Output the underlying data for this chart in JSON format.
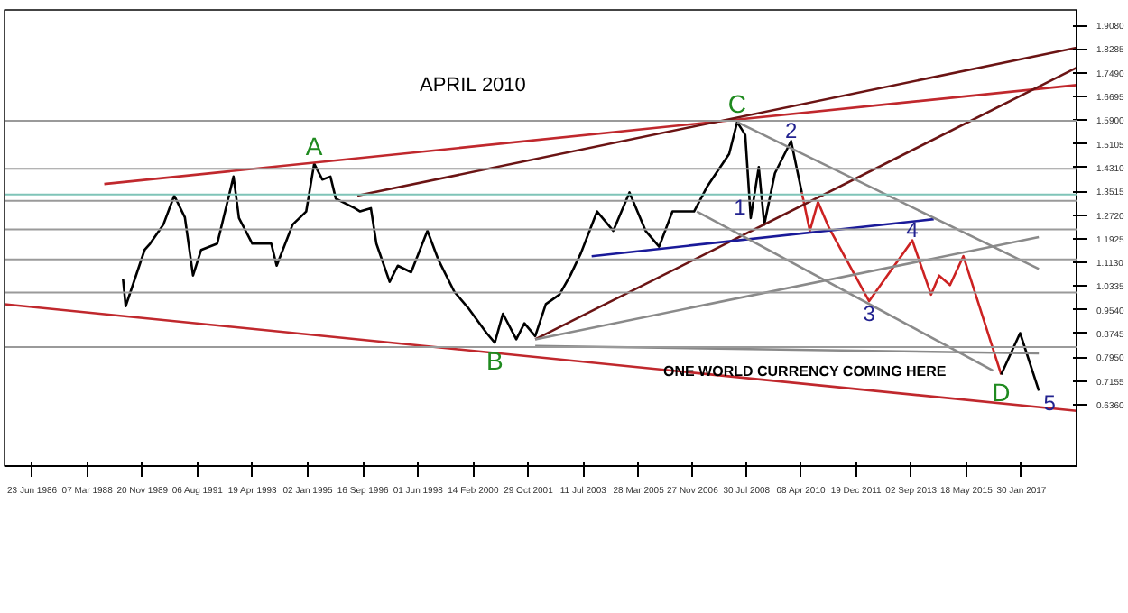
{
  "chart_data": {
    "type": "line",
    "title": "APRIL 2010",
    "xlim": [
      "1985-08",
      "2018-10"
    ],
    "ylim": [
      0.43,
      1.96
    ],
    "xticks": [
      {
        "value": "1986-06-23",
        "label": "23 Jun 1986"
      },
      {
        "value": "1988-03-07",
        "label": "07 Mar 1988"
      },
      {
        "value": "1989-11-20",
        "label": "20 Nov 1989"
      },
      {
        "value": "1991-08-06",
        "label": "06 Aug 1991"
      },
      {
        "value": "1993-04-19",
        "label": "19 Apr 1993"
      },
      {
        "value": "1995-01-02",
        "label": "02 Jan 1995"
      },
      {
        "value": "1996-09-16",
        "label": "16 Sep 1996"
      },
      {
        "value": "1998-06-01",
        "label": "01 Jun 1998"
      },
      {
        "value": "2000-02-14",
        "label": "14 Feb 2000"
      },
      {
        "value": "2001-10-29",
        "label": "29 Oct 2001"
      },
      {
        "value": "2003-07-11",
        "label": "11 Jul 2003"
      },
      {
        "value": "2005-03-28",
        "label": "28 Mar 2005"
      },
      {
        "value": "2006-11-27",
        "label": "27 Nov 2006"
      },
      {
        "value": "2008-07-30",
        "label": "30 Jul 2008"
      },
      {
        "value": "2010-04-08",
        "label": "08 Apr 2010"
      },
      {
        "value": "2011-12-19",
        "label": "19 Dec 2011"
      },
      {
        "value": "2013-09-02",
        "label": "02 Sep 2013"
      },
      {
        "value": "2015-05-18",
        "label": "18 May 2015"
      },
      {
        "value": "2017-01-30",
        "label": "30 Jan 2017"
      }
    ],
    "yticks": [
      {
        "value": 0.636,
        "label": "0.6360"
      },
      {
        "value": 0.7155,
        "label": "0.7155"
      },
      {
        "value": 0.795,
        "label": "0.7950"
      },
      {
        "value": 0.8745,
        "label": "0.8745"
      },
      {
        "value": 0.954,
        "label": "0.9540"
      },
      {
        "value": 1.0335,
        "label": "1.0335"
      },
      {
        "value": 1.113,
        "label": "1.1130"
      },
      {
        "value": 1.1925,
        "label": "1.1925"
      },
      {
        "value": 1.272,
        "label": "1.2720"
      },
      {
        "value": 1.3515,
        "label": "1.3515"
      },
      {
        "value": 1.431,
        "label": "1.4310"
      },
      {
        "value": 1.5105,
        "label": "1.5105"
      },
      {
        "value": 1.59,
        "label": "1.5900"
      },
      {
        "value": 1.6695,
        "label": "1.6695"
      },
      {
        "value": 1.749,
        "label": "1.7490"
      },
      {
        "value": 1.8285,
        "label": "1.8285"
      },
      {
        "value": 1.908,
        "label": "1.9080"
      }
    ],
    "grid": false,
    "series": [
      {
        "color": "#000000",
        "x": [
          "1989-04",
          "1989-05",
          "1989-12",
          "1990-02",
          "1990-07",
          "1990-11",
          "1991-03",
          "1991-06",
          "1991-09",
          "1992-03",
          "1992-09",
          "1992-11",
          "1993-04",
          "1993-11",
          "1994-01",
          "1994-07",
          "1994-12",
          "1995-03",
          "1995-06",
          "1995-09",
          "1995-11",
          "1996-06",
          "1996-08",
          "1996-12",
          "1997-02",
          "1997-07",
          "1997-10",
          "1998-03",
          "1998-09",
          "1999-01",
          "1999-07",
          "1999-12",
          "2000-07",
          "2000-10",
          "2001-01",
          "2001-06",
          "2001-09",
          "2002-01",
          "2002-05",
          "2002-10",
          "2003-02",
          "2003-06",
          "2003-12",
          "2004-06",
          "2004-12",
          "2005-06",
          "2005-11",
          "2006-04",
          "2006-12",
          "2007-05",
          "2008-01",
          "2008-04",
          "2008-07",
          "2008-09",
          "2008-12",
          "2009-02",
          "2009-06",
          "2009-12",
          "2010-04"
        ],
        "values": [
          1.058,
          0.966,
          1.155,
          1.176,
          1.24,
          1.337,
          1.264,
          1.069,
          1.155,
          1.176,
          1.401,
          1.262,
          1.176,
          1.176,
          1.102,
          1.24,
          1.284,
          1.444,
          1.391,
          1.401,
          1.327,
          1.295,
          1.284,
          1.295,
          1.176,
          1.048,
          1.102,
          1.08,
          1.219,
          1.123,
          1.015,
          0.962,
          0.876,
          0.844,
          0.941,
          0.855,
          0.909,
          0.866,
          0.973,
          1.005,
          1.069,
          1.144,
          1.284,
          1.219,
          1.348,
          1.219,
          1.166,
          1.284,
          1.284,
          1.369,
          1.477,
          1.584,
          1.541,
          1.262,
          1.433,
          1.24,
          1.412,
          1.52,
          1.348
        ]
      },
      {
        "color": "#cc2222",
        "x": [
          "2010-04",
          "2010-07",
          "2010-10",
          "2011-02",
          "2012-05",
          "2013-09",
          "2014-04",
          "2014-07",
          "2014-11",
          "2015-04",
          "2016-06"
        ],
        "values": [
          1.348,
          1.219,
          1.316,
          1.23,
          0.983,
          1.187,
          1.005,
          1.069,
          1.037,
          1.134,
          0.737
        ]
      },
      {
        "color": "#000000",
        "x": [
          "2016-06",
          "2017-01",
          "2017-08"
        ],
        "values": [
          0.737,
          0.876,
          0.683
        ]
      },
      {
        "color": "#c0282d",
        "x": [
          "1988-09",
          "2018-10"
        ],
        "values": [
          1.376,
          1.708
        ]
      },
      {
        "color": "#c0282d",
        "x": [
          "1985-08",
          "2018-10"
        ],
        "values": [
          0.973,
          0.615
        ]
      },
      {
        "color": "#6b1414",
        "x": [
          "1996-07",
          "2018-10"
        ],
        "values": [
          1.337,
          1.833
        ]
      },
      {
        "color": "#6b1414",
        "x": [
          "2002-01",
          "2018-10"
        ],
        "values": [
          0.855,
          1.766
        ]
      },
      {
        "color": "#1a1a99",
        "x": [
          "2003-10",
          "2014-05"
        ],
        "values": [
          1.134,
          1.258
        ]
      },
      {
        "color": "#8a8a8a",
        "x": [
          "2008-04",
          "2017-08"
        ],
        "values": [
          1.584,
          1.091
        ]
      },
      {
        "color": "#8a8a8a",
        "x": [
          "2007-01",
          "2016-03"
        ],
        "values": [
          1.284,
          0.75
        ]
      },
      {
        "color": "#8a8a8a",
        "x": [
          "2002-01",
          "2017-08"
        ],
        "values": [
          0.855,
          1.198
        ]
      },
      {
        "color": "#8a8a8a",
        "x": [
          "2002-01",
          "2017-08"
        ],
        "values": [
          0.833,
          0.808
        ]
      }
    ],
    "ref_lines": [
      {
        "axis": "y",
        "value": 1.588,
        "color": "#9a9a9a"
      },
      {
        "axis": "y",
        "value": 1.427,
        "color": "#9a9a9a"
      },
      {
        "axis": "y",
        "value": 1.32,
        "color": "#9a9a9a"
      },
      {
        "axis": "y",
        "value": 1.224,
        "color": "#9a9a9a"
      },
      {
        "axis": "y",
        "value": 1.123,
        "color": "#9a9a9a"
      },
      {
        "axis": "y",
        "value": 1.012,
        "color": "#9a9a9a"
      },
      {
        "axis": "y",
        "value": 0.829,
        "color": "#9a9a9a"
      },
      {
        "axis": "y",
        "value": 1.341,
        "color": "#7fc4b8"
      }
    ],
    "annotations": [
      {
        "text": "A",
        "x": "1995-03",
        "y": 1.444
      },
      {
        "text": "B",
        "x": "2000-10",
        "y": 0.844
      },
      {
        "text": "C",
        "x": "2008-04",
        "y": 1.584
      },
      {
        "text": "D",
        "x": "2016-06",
        "y": 0.737
      },
      {
        "text": "1",
        "x": "2008-09",
        "y": 1.262
      },
      {
        "text": "2",
        "x": "2009-12",
        "y": 1.52
      },
      {
        "text": "3",
        "x": "2012-05",
        "y": 0.983
      },
      {
        "text": "4",
        "x": "2013-09",
        "y": 1.187
      },
      {
        "text": "5",
        "x": "2017-08",
        "y": 0.683
      },
      "ONE WORLD CURRENCY COMING HERE"
    ]
  }
}
